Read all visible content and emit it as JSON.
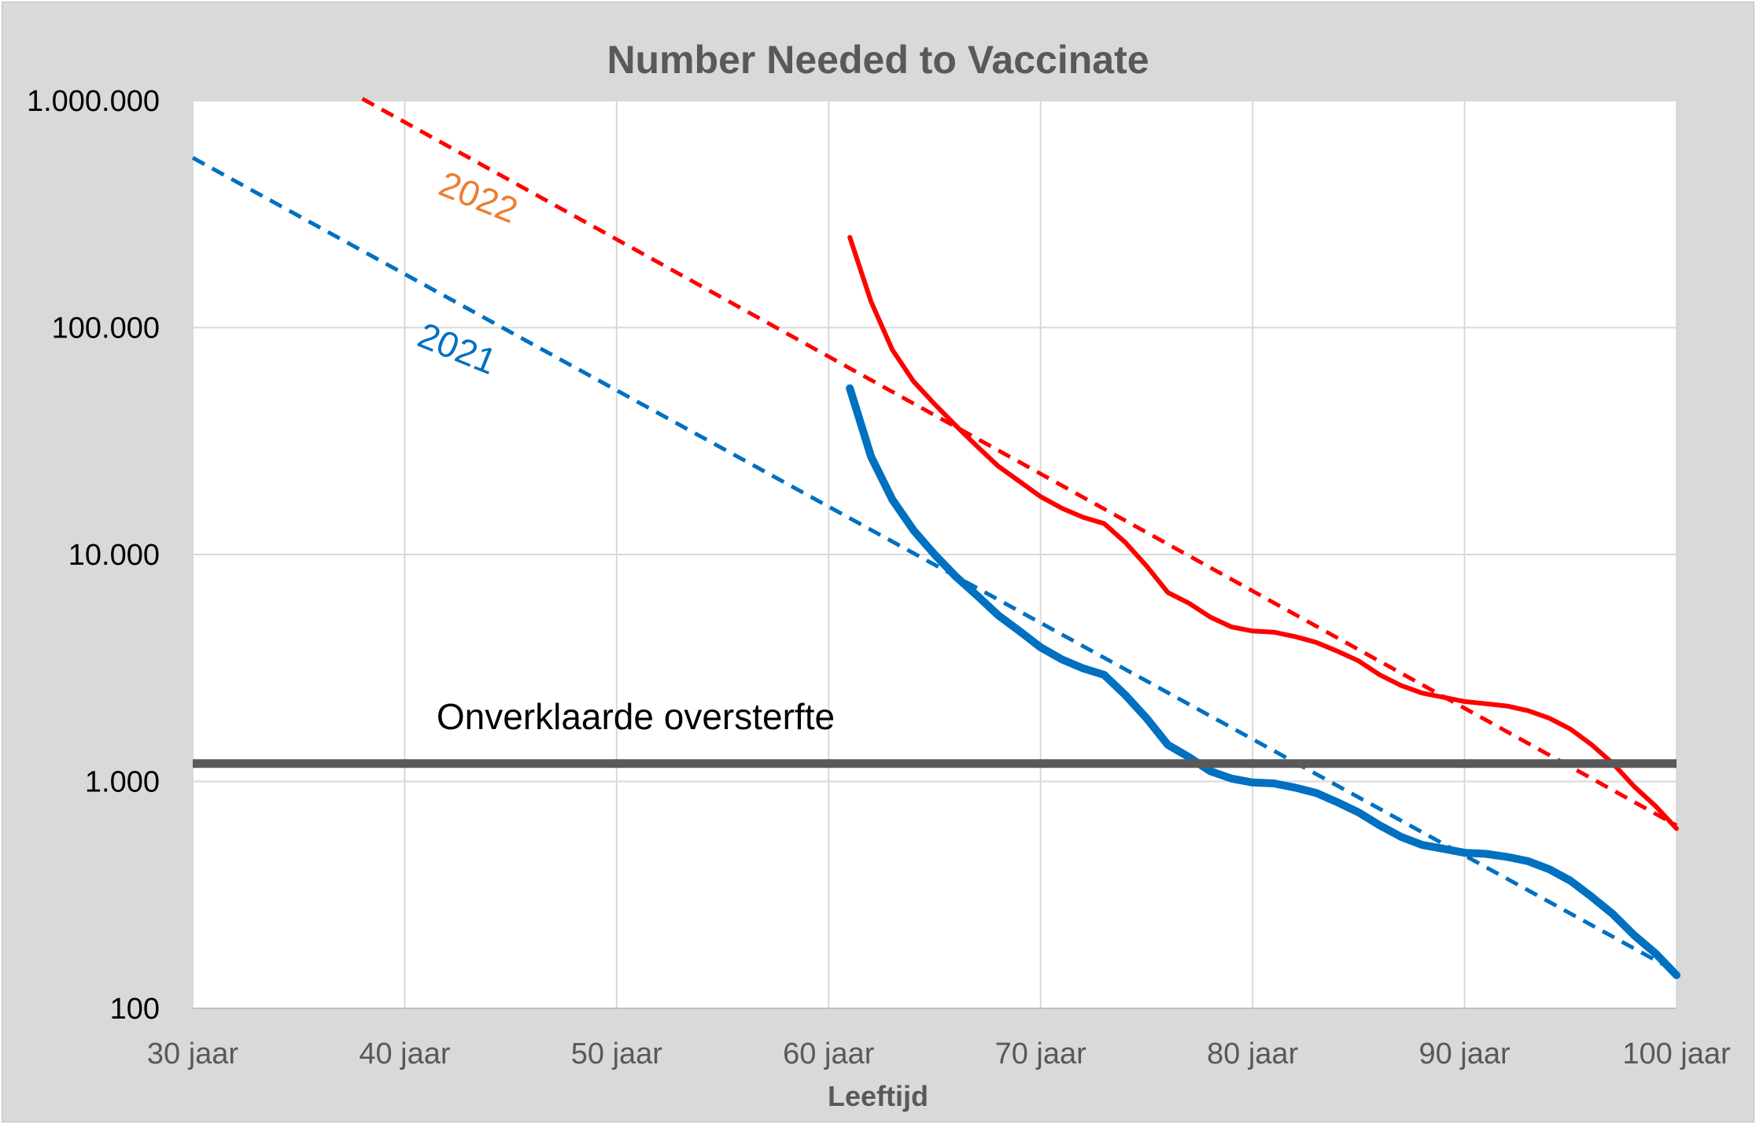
{
  "chart_data": {
    "type": "line",
    "title": "Number Needed to Vaccinate",
    "xlabel": "Leeftijd",
    "ylabel": "",
    "yscale": "log",
    "xlim": [
      30,
      100
    ],
    "ylim": [
      100,
      1000000
    ],
    "grid": true,
    "x_ticks": [
      {
        "value": 30,
        "label": "30 jaar"
      },
      {
        "value": 40,
        "label": "40 jaar"
      },
      {
        "value": 50,
        "label": "50 jaar"
      },
      {
        "value": 60,
        "label": "60 jaar"
      },
      {
        "value": 70,
        "label": "70 jaar"
      },
      {
        "value": 80,
        "label": "80 jaar"
      },
      {
        "value": 90,
        "label": "90 jaar"
      },
      {
        "value": 100,
        "label": "100 jaar"
      }
    ],
    "y_ticks": [
      {
        "value": 100,
        "label": "100"
      },
      {
        "value": 1000,
        "label": "1.000"
      },
      {
        "value": 10000,
        "label": "10.000"
      },
      {
        "value": 100000,
        "label": "100.000"
      },
      {
        "value": 1000000,
        "label": "1.000.000"
      }
    ],
    "series": [
      {
        "name": "2022",
        "style": "solid",
        "color": "#ff0000",
        "x": [
          61,
          62,
          63,
          64,
          65,
          66,
          67,
          68,
          69,
          70,
          71,
          72,
          73,
          74,
          75,
          76,
          77,
          78,
          79,
          80,
          81,
          82,
          83,
          84,
          85,
          86,
          87,
          88,
          89,
          90,
          91,
          92,
          93,
          94,
          95,
          96,
          97,
          98,
          99,
          100
        ],
        "values": [
          250000,
          130000,
          80000,
          58000,
          46000,
          37000,
          30000,
          24500,
          21000,
          18000,
          16000,
          14600,
          13700,
          11300,
          8900,
          6800,
          6100,
          5300,
          4800,
          4600,
          4550,
          4350,
          4100,
          3750,
          3400,
          2950,
          2650,
          2450,
          2350,
          2250,
          2200,
          2150,
          2050,
          1900,
          1700,
          1450,
          1200,
          950,
          780,
          620
        ]
      },
      {
        "name": "2022 trend",
        "style": "dashed",
        "color": "#ff0000",
        "x": [
          38,
          100
        ],
        "values": [
          1020000,
          640
        ]
      },
      {
        "name": "2021",
        "style": "solid",
        "color": "#0070c0",
        "x": [
          61,
          62,
          63,
          64,
          65,
          66,
          67,
          68,
          69,
          70,
          71,
          72,
          73,
          74,
          75,
          76,
          77,
          78,
          79,
          80,
          81,
          82,
          83,
          84,
          85,
          86,
          87,
          88,
          89,
          90,
          91,
          92,
          93,
          94,
          95,
          96,
          97,
          98,
          99,
          100
        ],
        "values": [
          54000,
          27000,
          17500,
          12800,
          10000,
          8000,
          6600,
          5400,
          4600,
          3900,
          3450,
          3150,
          2950,
          2400,
          1900,
          1450,
          1280,
          1110,
          1030,
          990,
          980,
          940,
          890,
          810,
          730,
          640,
          570,
          525,
          505,
          485,
          480,
          465,
          445,
          410,
          365,
          310,
          260,
          210,
          175,
          140
        ]
      },
      {
        "name": "2021 trend",
        "style": "dashed",
        "color": "#0070c0",
        "x": [
          30,
          100
        ],
        "values": [
          560000,
          145
        ]
      },
      {
        "name": "Onverklaarde oversterfte",
        "style": "reference",
        "color": "#595959",
        "x": [
          30,
          100
        ],
        "values": [
          1200,
          1200
        ]
      }
    ],
    "annotations": [
      {
        "text": "2022",
        "color": "#ed7d31",
        "x": 41.5,
        "y": 390000,
        "angle": 22
      },
      {
        "text": "2021",
        "color": "#0070c0",
        "x": 40.5,
        "y": 84000,
        "angle": 22
      },
      {
        "text": "Onverklaarde oversterfte",
        "color": "#000000",
        "x": 41.5,
        "y": 1700,
        "angle": 0
      }
    ]
  }
}
